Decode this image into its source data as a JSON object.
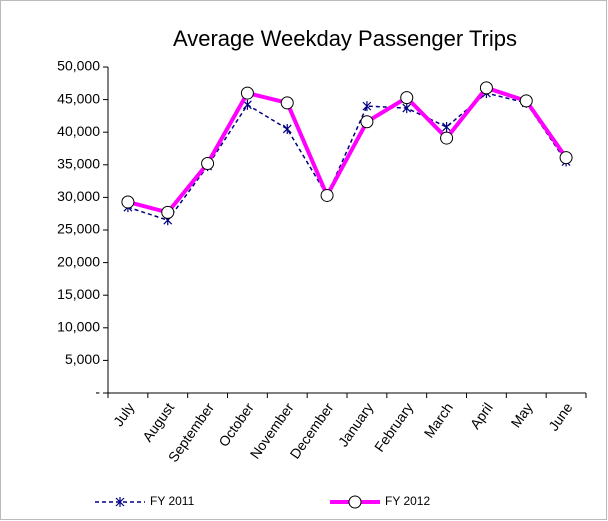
{
  "chart_data": {
    "type": "line",
    "title": "Average Weekday Passenger Trips",
    "categories": [
      "July",
      "August",
      "September",
      "October",
      "November",
      "December",
      "January",
      "February",
      "March",
      "April",
      "May",
      "June"
    ],
    "series": [
      {
        "name": "FY 2011",
        "color": "#000080",
        "values": [
          28500,
          26500,
          34800,
          44200,
          40500,
          30300,
          44000,
          43700,
          40800,
          46000,
          44500,
          35500
        ]
      },
      {
        "name": "FY 2012",
        "color": "#ff00ff",
        "values": [
          29300,
          27700,
          35200,
          46000,
          44500,
          30300,
          41600,
          45300,
          39100,
          46800,
          44800,
          36100
        ]
      }
    ],
    "ylim": [
      0,
      50000
    ],
    "yticks": [
      {
        "value": 0,
        "label": "-"
      },
      {
        "value": 5000,
        "label": "5,000"
      },
      {
        "value": 10000,
        "label": "10,000"
      },
      {
        "value": 15000,
        "label": "15,000"
      },
      {
        "value": 20000,
        "label": "20,000"
      },
      {
        "value": 25000,
        "label": "25,000"
      },
      {
        "value": 30000,
        "label": "30,000"
      },
      {
        "value": 35000,
        "label": "35,000"
      },
      {
        "value": 40000,
        "label": "40,000"
      },
      {
        "value": 45000,
        "label": "45,000"
      },
      {
        "value": 50000,
        "label": "50,000"
      }
    ],
    "legend": "bottom"
  }
}
